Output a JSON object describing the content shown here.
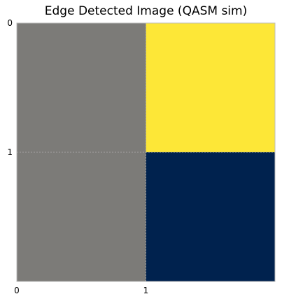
{
  "chart_data": {
    "type": "heatmap",
    "title": "Edge Detected Image (QASM sim)",
    "xlabel": "",
    "ylabel": "",
    "x_ticks": [
      "0",
      "1"
    ],
    "y_ticks": [
      "0",
      "1"
    ],
    "xlim": [
      0,
      2
    ],
    "ylim": [
      2,
      0
    ],
    "grid": true,
    "colormap": "cividis",
    "values": [
      [
        0.5,
        1.0
      ],
      [
        0.5,
        0.0
      ]
    ],
    "colors": {
      "low": "#00224e",
      "mid": "#7c7b78",
      "high": "#fde737",
      "grid": "#b0b0b0",
      "axes": "#bcbcbc"
    }
  }
}
